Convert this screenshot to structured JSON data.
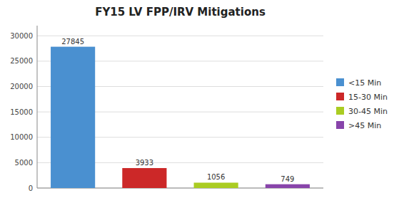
{
  "chart_data": {
    "type": "bar",
    "title": "FY15 LV FPP/IRV Mitigations",
    "categories": [
      "<15 Min",
      "15-30 Min",
      "30-45 Min",
      ">45 Min"
    ],
    "values": [
      27845,
      3933,
      1056,
      749
    ],
    "colors": [
      "#4a90d0",
      "#cc2828",
      "#aacc22",
      "#8844aa"
    ],
    "ylim": [
      0,
      32000
    ],
    "yticks": [
      0,
      5000,
      10000,
      15000,
      20000,
      25000,
      30000
    ],
    "grid": true,
    "legend": "right",
    "data_labels": true,
    "tick_labels": "y"
  }
}
